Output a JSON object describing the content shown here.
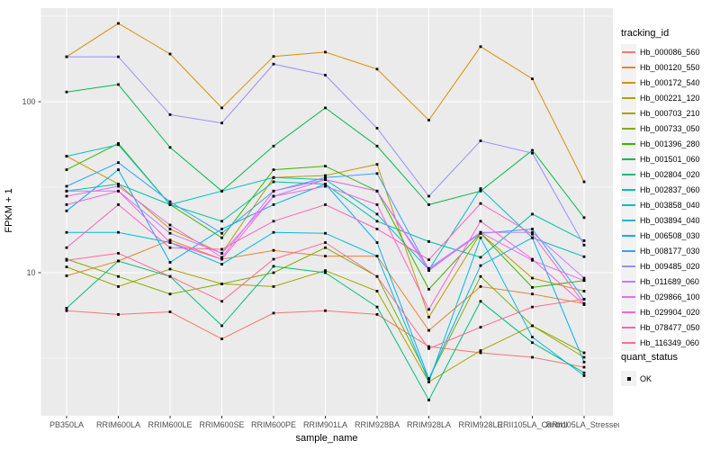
{
  "chart_data": {
    "type": "line",
    "title": "",
    "xlabel": "sample_name",
    "ylabel": "FPKM + 1",
    "y_scale": "log10",
    "ylim": [
      1.6,
      360
    ],
    "grid": "on",
    "legend_position": "right",
    "panel_bg": "#EBEBEB",
    "grid_color": "#FFFFFF",
    "point_color": "#000000",
    "tick_label_color": "#4D4D4D",
    "y_ticks": [
      {
        "label": "100",
        "value": 100
      },
      {
        "label": "10",
        "value": 10
      }
    ],
    "categories": [
      "PB350LA",
      "RRIM600LA",
      "RRIM600LE",
      "RRIM600SE",
      "RRIM600PE",
      "RRIM901LA",
      "RRIM928BA",
      "RRIM928LA",
      "RRIM928LE",
      "RRII105LA_Control",
      "RRII105LA_Stressed"
    ],
    "series": [
      {
        "name": "Hb_000086_560",
        "color": "#F8766D",
        "values": [
          6.0,
          5.7,
          5.9,
          4.1,
          5.8,
          6.0,
          5.7,
          3.7,
          3.4,
          3.2,
          2.8
        ]
      },
      {
        "name": "Hb_000120_550",
        "color": "#EA8331",
        "values": [
          9.6,
          11.7,
          15.5,
          12.0,
          13.5,
          12.5,
          12.5,
          4.6,
          8.3,
          7.5,
          6.6
        ]
      },
      {
        "name": "Hb_000172_540",
        "color": "#D89000",
        "values": [
          183,
          287,
          190,
          92,
          184,
          195,
          155,
          78,
          210,
          136,
          34
        ]
      },
      {
        "name": "Hb_000221_120",
        "color": "#C09B00",
        "values": [
          48,
          33,
          18,
          13,
          36,
          37,
          43,
          5.5,
          17,
          9.3,
          7.8
        ]
      },
      {
        "name": "Hb_000703_210",
        "color": "#A3A500",
        "values": [
          10.8,
          8.3,
          10.5,
          8.6,
          8.3,
          10.3,
          7.8,
          2.3,
          3.5,
          4.9,
          3.2
        ]
      },
      {
        "name": "Hb_000733_050",
        "color": "#7CAE00",
        "values": [
          12,
          9.5,
          7.5,
          8.6,
          10,
          14,
          9.5,
          2.4,
          9.5,
          4.9,
          3.4
        ]
      },
      {
        "name": "Hb_001396_280",
        "color": "#39B600",
        "values": [
          40,
          57,
          25,
          16,
          40,
          42,
          30,
          8,
          17,
          8.2,
          9.0
        ]
      },
      {
        "name": "Hb_001501_060",
        "color": "#00BB4E",
        "values": [
          114,
          126,
          54,
          30,
          55,
          92,
          55,
          25,
          30,
          52,
          21
        ]
      },
      {
        "name": "Hb_002804_020",
        "color": "#00BF7D",
        "values": [
          6.2,
          11.7,
          9.5,
          4.9,
          10.9,
          10,
          6.3,
          1.8,
          6.8,
          3.9,
          2.6
        ]
      },
      {
        "name": "Hb_002837_060",
        "color": "#00C1A3",
        "values": [
          30,
          33,
          25,
          20,
          34,
          33,
          20,
          15.2,
          12.3,
          22,
          15.4
        ]
      },
      {
        "name": "Hb_003858_040",
        "color": "#00BFC4",
        "values": [
          48,
          56,
          25,
          30,
          36,
          35,
          22,
          10.4,
          31,
          16,
          12.4
        ]
      },
      {
        "name": "Hb_003894_040",
        "color": "#00BAE0",
        "values": [
          17.2,
          17.2,
          15,
          11.2,
          17.2,
          17,
          12.5,
          2.3,
          16,
          4.2,
          2.5
        ]
      },
      {
        "name": "Hb_006508_030",
        "color": "#00B0F6",
        "values": [
          23,
          40,
          11.5,
          18,
          25,
          33,
          15,
          2.4,
          11,
          16,
          3.0
        ]
      },
      {
        "name": "Hb_008177_030",
        "color": "#35A2FF",
        "values": [
          32,
          44,
          26,
          17,
          30,
          36,
          38,
          10.4,
          17,
          18,
          7
        ]
      },
      {
        "name": "Hb_009485_020",
        "color": "#9590FF",
        "values": [
          183,
          183,
          84,
          75,
          166,
          143,
          70,
          28,
          59,
          50,
          14.5
        ]
      },
      {
        "name": "Hb_011689_060",
        "color": "#C77CFF",
        "values": [
          30,
          30,
          17,
          13,
          28,
          35,
          30,
          10.6,
          17.2,
          17.2,
          9.3
        ]
      },
      {
        "name": "Hb_029866_100",
        "color": "#E76BF3",
        "values": [
          28,
          32,
          19,
          12.3,
          30,
          35,
          30,
          10.3,
          17.2,
          11.8,
          9.0
        ]
      },
      {
        "name": "Hb_029904_020",
        "color": "#FA62DB",
        "values": [
          25,
          30,
          15,
          12,
          28,
          32,
          25,
          6.1,
          20,
          12,
          6.5
        ]
      },
      {
        "name": "Hb_078477_050",
        "color": "#FF62BC",
        "values": [
          14,
          25,
          14,
          13.7,
          20,
          25,
          18,
          11.9,
          25.4,
          16.8,
          6.6
        ]
      },
      {
        "name": "Hb_116349_060",
        "color": "#FF6A98",
        "values": [
          11.8,
          13,
          9.5,
          6.8,
          12,
          15,
          9.5,
          3.6,
          4.8,
          6.3,
          7.0
        ]
      }
    ]
  },
  "legend": {
    "title": "tracking_id"
  },
  "legend2": {
    "title": "quant_status",
    "items": [
      "OK"
    ]
  },
  "axes": {
    "xlabel": "sample_name",
    "ylabel": "FPKM + 1"
  }
}
